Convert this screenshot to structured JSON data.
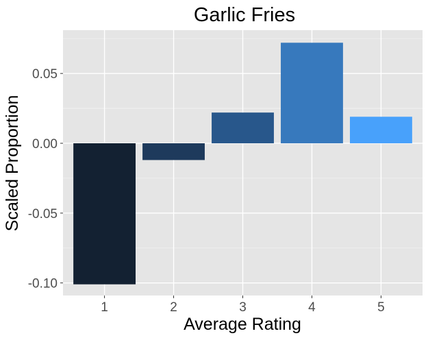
{
  "chart_data": {
    "type": "bar",
    "title": "Garlic Fries",
    "xlabel": "Average Rating",
    "ylabel": "Scaled Proportion",
    "categories": [
      "1",
      "2",
      "3",
      "4",
      "5"
    ],
    "values": [
      -0.101,
      -0.012,
      0.022,
      0.072,
      0.019
    ],
    "colors": [
      "#132132",
      "#1e3a5c",
      "#28578b",
      "#3779bd",
      "#48a1fb"
    ],
    "ylim": [
      -0.109,
      0.081
    ],
    "yticks": [
      -0.1,
      -0.05,
      0.0,
      0.05
    ],
    "ytick_labels": [
      "-0.10",
      "-0.05",
      "0.00",
      "0.05"
    ],
    "grid": true,
    "legend": "none"
  }
}
